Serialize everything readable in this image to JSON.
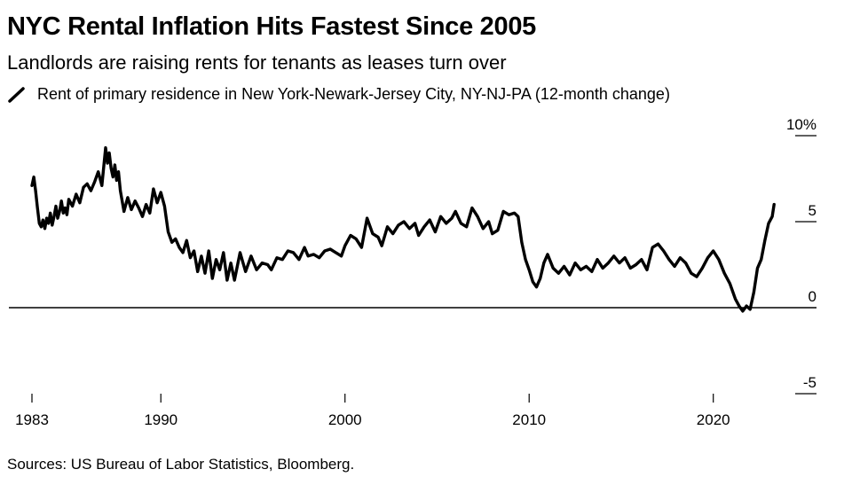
{
  "chart_data": {
    "type": "line",
    "title": "NYC Rental Inflation Hits Fastest Since 2005",
    "subtitle": "Landlords are raising rents for tenants as leases turn over",
    "xlabel": "",
    "ylabel": "",
    "ylim": [
      -5,
      10
    ],
    "xlim": [
      1983,
      2024.4
    ],
    "y_ticks": [
      {
        "value": 10,
        "label": "10%"
      },
      {
        "value": 5,
        "label": "5"
      },
      {
        "value": 0,
        "label": "0"
      },
      {
        "value": -5,
        "label": "-5"
      }
    ],
    "x_ticks": [
      {
        "value": 1983,
        "label": "1983"
      },
      {
        "value": 1990,
        "label": "1990"
      },
      {
        "value": 2000,
        "label": "2000"
      },
      {
        "value": 2010,
        "label": "2010"
      },
      {
        "value": 2020,
        "label": "2020"
      }
    ],
    "grid": false,
    "legend_position": "top-left",
    "series": [
      {
        "name": "Rent of primary residence in New York-Newark-Jersey City, NY-NJ-PA (12-month change)",
        "color": "#000000",
        "x": [
          1983.0,
          1983.1,
          1983.2,
          1983.3,
          1983.4,
          1983.5,
          1983.6,
          1983.7,
          1983.8,
          1983.9,
          1984.0,
          1984.1,
          1984.2,
          1984.3,
          1984.4,
          1984.5,
          1984.6,
          1984.7,
          1984.8,
          1984.9,
          1985.0,
          1985.2,
          1985.4,
          1985.6,
          1985.8,
          1986.0,
          1986.2,
          1986.4,
          1986.6,
          1986.8,
          1987.0,
          1987.1,
          1987.2,
          1987.3,
          1987.4,
          1987.5,
          1987.6,
          1987.7,
          1987.8,
          1988.0,
          1988.2,
          1988.4,
          1988.6,
          1988.8,
          1989.0,
          1989.2,
          1989.4,
          1989.6,
          1989.8,
          1990.0,
          1990.2,
          1990.4,
          1990.6,
          1990.8,
          1991.0,
          1991.2,
          1991.4,
          1991.6,
          1991.8,
          1992.0,
          1992.2,
          1992.4,
          1992.6,
          1992.8,
          1993.0,
          1993.2,
          1993.4,
          1993.6,
          1993.8,
          1994.0,
          1994.3,
          1994.6,
          1994.9,
          1995.2,
          1995.5,
          1995.8,
          1996.0,
          1996.3,
          1996.6,
          1996.9,
          1997.2,
          1997.5,
          1997.8,
          1998.0,
          1998.3,
          1998.6,
          1998.9,
          1999.2,
          1999.5,
          1999.8,
          2000.0,
          2000.3,
          2000.6,
          2000.9,
          2001.2,
          2001.5,
          2001.8,
          2002.0,
          2002.3,
          2002.6,
          2002.9,
          2003.2,
          2003.5,
          2003.8,
          2004.0,
          2004.3,
          2004.6,
          2004.9,
          2005.2,
          2005.5,
          2005.8,
          2006.0,
          2006.3,
          2006.6,
          2006.9,
          2007.2,
          2007.5,
          2007.8,
          2008.0,
          2008.3,
          2008.6,
          2008.9,
          2009.2,
          2009.4,
          2009.6,
          2009.8,
          2010.0,
          2010.2,
          2010.4,
          2010.6,
          2010.8,
          2011.0,
          2011.3,
          2011.6,
          2011.9,
          2012.2,
          2012.5,
          2012.8,
          2013.1,
          2013.4,
          2013.7,
          2014.0,
          2014.3,
          2014.6,
          2014.9,
          2015.2,
          2015.5,
          2015.8,
          2016.1,
          2016.4,
          2016.7,
          2017.0,
          2017.3,
          2017.6,
          2017.9,
          2018.2,
          2018.5,
          2018.8,
          2019.1,
          2019.4,
          2019.7,
          2020.0,
          2020.3,
          2020.6,
          2020.9,
          2021.2,
          2021.4,
          2021.6,
          2021.8,
          2022.0,
          2022.2,
          2022.4,
          2022.6,
          2022.8,
          2023.0,
          2023.2,
          2023.3
        ],
        "values": [
          7.1,
          7.6,
          6.8,
          5.8,
          4.9,
          4.7,
          5.1,
          4.6,
          5.2,
          4.9,
          5.5,
          4.8,
          5.3,
          5.9,
          5.2,
          5.6,
          6.2,
          5.5,
          5.8,
          5.4,
          6.3,
          5.9,
          6.6,
          6.1,
          7.0,
          7.2,
          6.8,
          7.3,
          7.9,
          7.1,
          9.3,
          8.4,
          9.0,
          8.1,
          7.6,
          8.3,
          7.4,
          7.9,
          6.8,
          5.6,
          6.4,
          5.7,
          6.2,
          5.8,
          5.3,
          6.0,
          5.5,
          6.9,
          6.1,
          6.7,
          5.9,
          4.4,
          3.8,
          4.0,
          3.5,
          3.2,
          3.9,
          2.9,
          3.3,
          2.1,
          3.0,
          2.0,
          3.3,
          1.7,
          2.8,
          2.2,
          3.2,
          1.6,
          2.6,
          1.6,
          3.2,
          2.1,
          3.0,
          2.2,
          2.6,
          2.5,
          2.2,
          2.9,
          2.8,
          3.3,
          3.2,
          2.8,
          3.5,
          3.0,
          3.1,
          2.9,
          3.3,
          3.4,
          3.2,
          3.0,
          3.6,
          4.2,
          4.0,
          3.5,
          5.2,
          4.3,
          4.1,
          3.6,
          4.7,
          4.3,
          4.8,
          5.0,
          4.6,
          4.9,
          4.2,
          4.7,
          5.1,
          4.4,
          5.3,
          4.9,
          5.2,
          5.6,
          4.9,
          4.7,
          5.8,
          5.3,
          4.6,
          5.0,
          4.3,
          4.5,
          5.6,
          5.4,
          5.5,
          5.3,
          3.8,
          2.8,
          2.2,
          1.5,
          1.2,
          1.7,
          2.6,
          3.1,
          2.3,
          2.0,
          2.4,
          1.9,
          2.6,
          2.2,
          2.4,
          2.1,
          2.8,
          2.3,
          2.6,
          3.0,
          2.6,
          2.9,
          2.3,
          2.5,
          2.8,
          2.2,
          3.5,
          3.7,
          3.3,
          2.8,
          2.4,
          2.9,
          2.6,
          2.0,
          1.8,
          2.3,
          2.9,
          3.3,
          2.8,
          2.0,
          1.4,
          0.5,
          0.1,
          -0.2,
          0.1,
          -0.1,
          0.9,
          2.3,
          2.8,
          3.9,
          4.9,
          5.3,
          6.0
        ]
      }
    ],
    "source": "Sources: US Bureau of Labor Statistics, Bloomberg."
  }
}
